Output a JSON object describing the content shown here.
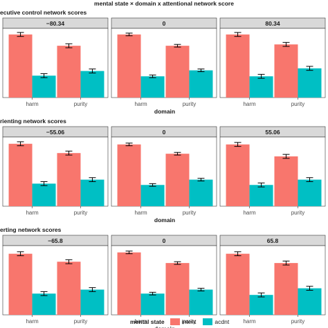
{
  "title": "mental state × domain x attentional network score",
  "colors": {
    "intent": "#F8766D",
    "acdnt": "#00BFC4",
    "panel_bg": "#ebebeb",
    "strip_bg": "#d9d9d9"
  },
  "legend": {
    "title": "mental state",
    "items": [
      {
        "label": "intent",
        "color": "#F8766D"
      },
      {
        "label": "acdnt",
        "color": "#00BFC4"
      }
    ]
  },
  "chart_data": [
    {
      "type": "bar",
      "title": "ecutive control network scores",
      "xlabel": "domain",
      "panels": [
        {
          "strip": "−80.34",
          "categories": [
            "harm",
            "purity"
          ],
          "series": [
            {
              "name": "intent",
              "values": [
                0.95,
                0.78
              ],
              "errors": [
                0.03,
                0.03
              ]
            },
            {
              "name": "acdnt",
              "values": [
                0.33,
                0.4
              ],
              "errors": [
                0.03,
                0.03
              ]
            }
          ]
        },
        {
          "strip": "0",
          "categories": [
            "harm",
            "purity"
          ],
          "series": [
            {
              "name": "intent",
              "values": [
                0.95,
                0.78
              ],
              "errors": [
                0.02,
                0.02
              ]
            },
            {
              "name": "acdnt",
              "values": [
                0.32,
                0.41
              ],
              "errors": [
                0.02,
                0.02
              ]
            }
          ]
        },
        {
          "strip": "80.34",
          "categories": [
            "harm",
            "purity"
          ],
          "series": [
            {
              "name": "intent",
              "values": [
                0.95,
                0.8
              ],
              "errors": [
                0.03,
                0.03
              ]
            },
            {
              "name": "acdnt",
              "values": [
                0.32,
                0.44
              ],
              "errors": [
                0.03,
                0.03
              ]
            }
          ]
        }
      ]
    },
    {
      "type": "bar",
      "title": "rienting network scores",
      "xlabel": "domain",
      "panels": [
        {
          "strip": "−55.06",
          "categories": [
            "harm",
            "purity"
          ],
          "series": [
            {
              "name": "intent",
              "values": [
                0.94,
                0.8
              ],
              "errors": [
                0.03,
                0.03
              ]
            },
            {
              "name": "acdnt",
              "values": [
                0.34,
                0.4
              ],
              "errors": [
                0.03,
                0.03
              ]
            }
          ]
        },
        {
          "strip": "0",
          "categories": [
            "harm",
            "purity"
          ],
          "series": [
            {
              "name": "intent",
              "values": [
                0.93,
                0.79
              ],
              "errors": [
                0.02,
                0.02
              ]
            },
            {
              "name": "acdnt",
              "values": [
                0.32,
                0.4
              ],
              "errors": [
                0.02,
                0.02
              ]
            }
          ]
        },
        {
          "strip": "55.06",
          "categories": [
            "harm",
            "purity"
          ],
          "series": [
            {
              "name": "intent",
              "values": [
                0.93,
                0.75
              ],
              "errors": [
                0.03,
                0.03
              ]
            },
            {
              "name": "acdnt",
              "values": [
                0.32,
                0.4
              ],
              "errors": [
                0.03,
                0.03
              ]
            }
          ]
        }
      ]
    },
    {
      "type": "bar",
      "title": "erting network scores",
      "xlabel": "domain",
      "panels": [
        {
          "strip": "−65.8",
          "categories": [
            "harm",
            "purity"
          ],
          "series": [
            {
              "name": "intent",
              "values": [
                0.92,
                0.8
              ],
              "errors": [
                0.03,
                0.03
              ]
            },
            {
              "name": "acdnt",
              "values": [
                0.32,
                0.38
              ],
              "errors": [
                0.03,
                0.03
              ]
            }
          ]
        },
        {
          "strip": "0",
          "categories": [
            "harm",
            "purity"
          ],
          "series": [
            {
              "name": "intent",
              "values": [
                0.94,
                0.78
              ],
              "errors": [
                0.02,
                0.02
              ]
            },
            {
              "name": "acdnt",
              "values": [
                0.32,
                0.38
              ],
              "errors": [
                0.02,
                0.02
              ]
            }
          ]
        },
        {
          "strip": "65.8",
          "categories": [
            "harm",
            "purity"
          ],
          "series": [
            {
              "name": "intent",
              "values": [
                0.92,
                0.78
              ],
              "errors": [
                0.03,
                0.03
              ]
            },
            {
              "name": "acdnt",
              "values": [
                0.3,
                0.4
              ],
              "errors": [
                0.03,
                0.03
              ]
            }
          ]
        }
      ]
    }
  ]
}
